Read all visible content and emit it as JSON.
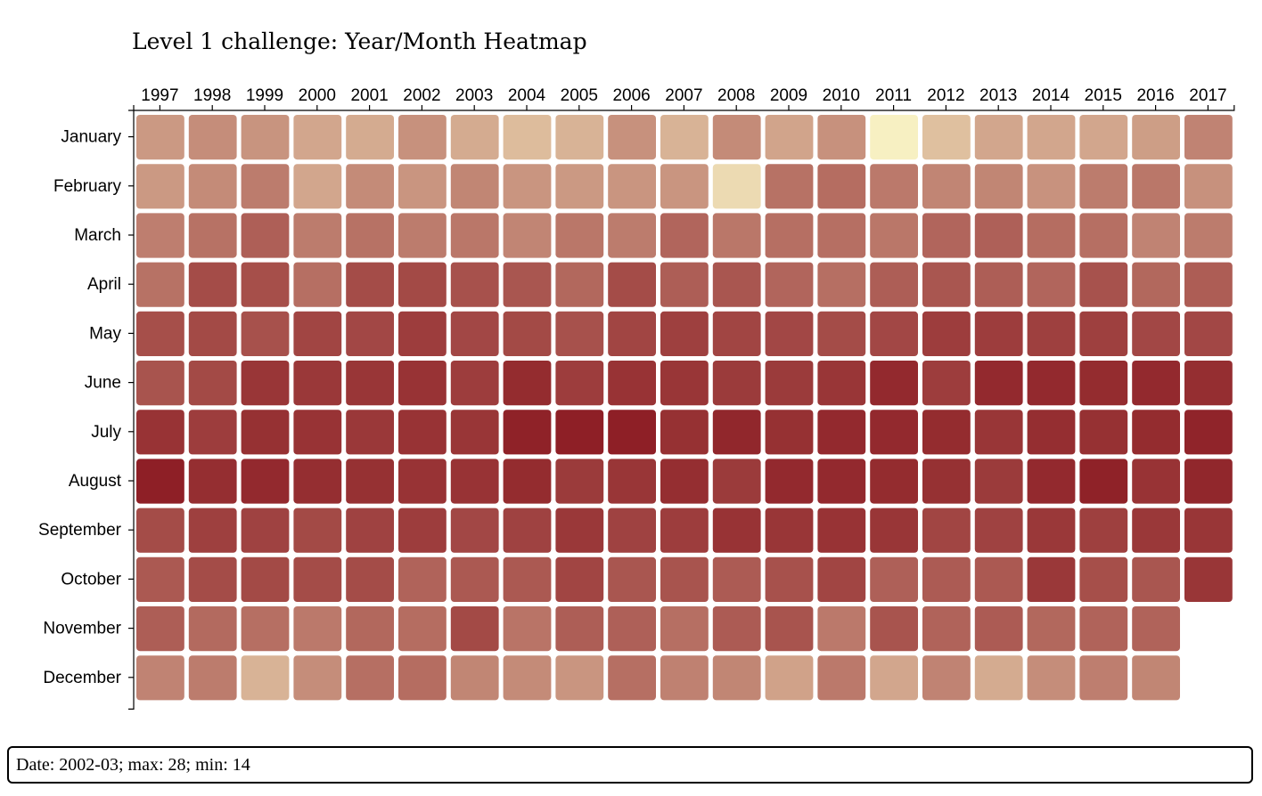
{
  "chart_data": {
    "type": "heatmap",
    "title": "Level 1 challenge: Year/Month Heatmap",
    "x": [
      "1997",
      "1998",
      "1999",
      "2000",
      "2001",
      "2002",
      "2003",
      "2004",
      "2005",
      "2006",
      "2007",
      "2008",
      "2009",
      "2010",
      "2011",
      "2012",
      "2013",
      "2014",
      "2015",
      "2016",
      "2017"
    ],
    "y": [
      "January",
      "February",
      "March",
      "April",
      "May",
      "June",
      "July",
      "August",
      "September",
      "October",
      "November",
      "December"
    ],
    "color_min": 14,
    "color_max": 28,
    "color_low": "#f7f0c2",
    "color_mid": "#c99580",
    "color_high": "#8b1a22",
    "values": [
      [
        18.0,
        18.8,
        18.3,
        17.4,
        17.2,
        18.5,
        17.2,
        16.4,
        16.8,
        18.5,
        16.8,
        19.0,
        17.5,
        18.5,
        14.0,
        16.2,
        17.4,
        17.4,
        17.4,
        17.8,
        19.6
      ],
      [
        18.0,
        19.0,
        20.2,
        17.4,
        19.0,
        18.2,
        19.4,
        18.2,
        18.0,
        18.2,
        18.2,
        15.0,
        21.0,
        21.4,
        20.4,
        19.5,
        19.4,
        18.4,
        20.2,
        20.6,
        18.5
      ],
      [
        20.0,
        21.0,
        22.5,
        20.2,
        21.0,
        20.2,
        20.6,
        19.5,
        20.6,
        20.2,
        22.0,
        20.6,
        21.2,
        21.2,
        20.6,
        22.0,
        22.4,
        21.4,
        21.2,
        19.6,
        20.2
      ],
      [
        21.0,
        24.0,
        23.8,
        21.2,
        24.0,
        24.2,
        23.6,
        23.2,
        21.8,
        24.0,
        22.6,
        23.2,
        22.0,
        21.2,
        22.6,
        23.2,
        22.6,
        22.0,
        23.5,
        21.8,
        22.7
      ],
      [
        23.8,
        24.2,
        23.6,
        24.6,
        24.4,
        25.2,
        24.4,
        24.2,
        23.6,
        24.6,
        25.0,
        24.6,
        24.4,
        24.0,
        24.4,
        25.2,
        25.2,
        25.0,
        25.0,
        24.4,
        24.4
      ],
      [
        23.4,
        24.2,
        25.8,
        25.6,
        25.8,
        26.0,
        25.2,
        26.6,
        25.2,
        26.0,
        25.8,
        25.4,
        25.4,
        25.8,
        26.8,
        25.2,
        26.8,
        26.8,
        26.6,
        26.8,
        26.4
      ],
      [
        26.0,
        25.2,
        26.2,
        26.0,
        25.6,
        26.0,
        25.8,
        27.4,
        27.6,
        27.6,
        26.2,
        27.0,
        26.2,
        26.8,
        26.8,
        26.6,
        25.8,
        26.4,
        26.2,
        26.6,
        27.2
      ],
      [
        27.6,
        26.4,
        26.8,
        26.4,
        26.2,
        26.0,
        26.0,
        26.6,
        25.4,
        25.8,
        26.4,
        25.4,
        26.8,
        26.8,
        26.6,
        26.2,
        25.4,
        26.8,
        27.4,
        26.0,
        27.0
      ],
      [
        24.0,
        25.0,
        24.8,
        24.2,
        24.8,
        25.2,
        24.4,
        24.8,
        25.6,
        24.8,
        25.2,
        26.0,
        25.8,
        26.0,
        25.8,
        24.6,
        24.8,
        25.6,
        25.0,
        25.6,
        25.8
      ],
      [
        23.0,
        24.0,
        24.2,
        24.0,
        24.0,
        22.2,
        23.0,
        23.0,
        24.6,
        23.2,
        23.4,
        22.8,
        23.6,
        24.6,
        22.4,
        22.8,
        23.0,
        25.6,
        23.8,
        23.2,
        25.8
      ],
      [
        22.6,
        21.6,
        21.2,
        20.4,
        21.8,
        21.4,
        24.2,
        20.8,
        22.6,
        22.4,
        21.2,
        22.8,
        23.4,
        20.4,
        23.4,
        22.2,
        22.8,
        21.8,
        22.2,
        22.2,
        null
      ],
      [
        19.6,
        20.2,
        16.8,
        18.8,
        21.2,
        21.4,
        19.4,
        19.0,
        18.2,
        21.2,
        19.8,
        19.4,
        17.6,
        20.4,
        17.4,
        19.6,
        17.2,
        18.8,
        20.0,
        19.4,
        null
      ]
    ]
  },
  "info": {
    "text": "Date: 2002-03; max: 28; min: 14"
  }
}
